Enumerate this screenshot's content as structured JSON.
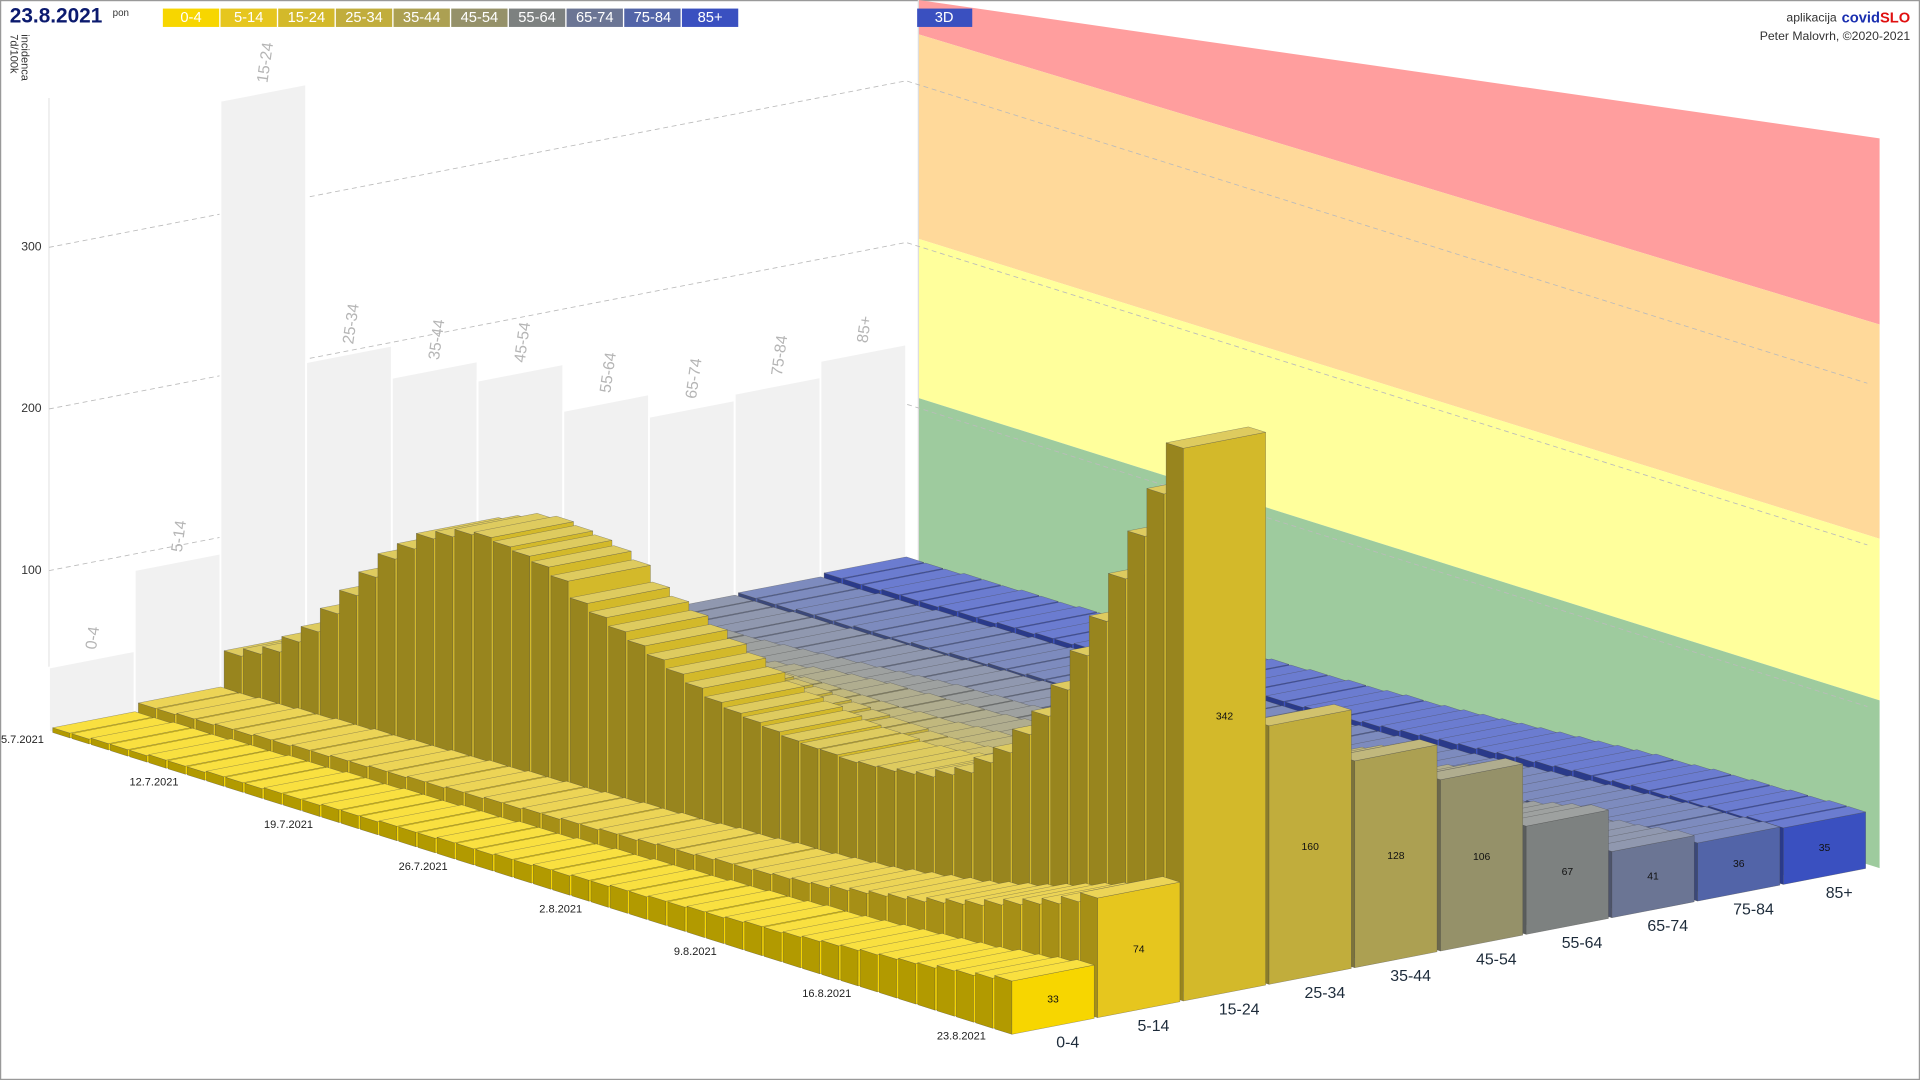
{
  "header": {
    "date": "23.8.2021",
    "weekday": "pon",
    "app_label": "aplikacija",
    "app_name_1": "covid",
    "app_name_2": "SLO",
    "author": "Peter Malovrh, ©2020-2021",
    "view_button": "3D"
  },
  "chart_data": {
    "type": "bar3d",
    "y_label": [
      "7d/100k",
      "incidenca"
    ],
    "categories": [
      "5.7.2021",
      null,
      null,
      null,
      null,
      null,
      null,
      "12.7.2021",
      null,
      null,
      null,
      null,
      null,
      null,
      "19.7.2021",
      null,
      null,
      null,
      null,
      null,
      null,
      "26.7.2021",
      null,
      null,
      null,
      null,
      null,
      null,
      "2.8.2021",
      null,
      null,
      null,
      null,
      null,
      null,
      "9.8.2021",
      null,
      null,
      null,
      null,
      null,
      null,
      "16.8.2021",
      null,
      null,
      null,
      null,
      null,
      null,
      "23.8.2021"
    ],
    "series": [
      {
        "name": "0-4",
        "color": "#f7d600",
        "values": [
          3,
          3,
          4,
          4,
          4,
          5,
          5,
          5,
          6,
          6,
          6,
          7,
          7,
          7,
          8,
          8,
          8,
          9,
          9,
          9,
          10,
          10,
          10,
          11,
          11,
          12,
          12,
          13,
          13,
          14,
          14,
          15,
          15,
          16,
          16,
          17,
          18,
          18,
          19,
          20,
          21,
          22,
          23,
          24,
          25,
          26,
          28,
          29,
          31,
          33
        ]
      },
      {
        "name": "5-14",
        "color": "#e6c61e",
        "values": [
          8,
          8,
          9,
          9,
          10,
          10,
          11,
          11,
          12,
          12,
          13,
          13,
          14,
          14,
          15,
          15,
          16,
          16,
          17,
          17,
          18,
          18,
          19,
          19,
          20,
          20,
          21,
          22,
          22,
          23,
          24,
          24,
          25,
          26,
          27,
          28,
          30,
          32,
          34,
          36,
          38,
          41,
          44,
          47,
          51,
          55,
          59,
          63,
          68,
          74
        ]
      },
      {
        "name": "15-24",
        "color": "#d3b92a",
        "values": [
          30,
          35,
          40,
          50,
          60,
          75,
          90,
          105,
          120,
          130,
          140,
          145,
          150,
          152,
          150,
          148,
          145,
          140,
          130,
          125,
          120,
          115,
          110,
          105,
          100,
          95,
          92,
          90,
          88,
          86,
          85,
          85,
          84,
          85,
          86,
          88,
          90,
          95,
          100,
          110,
          120,
          135,
          150,
          170,
          195,
          220,
          250,
          280,
          310,
          342
        ]
      },
      {
        "name": "25-34",
        "color": "#c1ad3c",
        "values": [
          20,
          22,
          25,
          28,
          32,
          36,
          40,
          45,
          50,
          55,
          60,
          65,
          68,
          70,
          72,
          73,
          74,
          74,
          74,
          73,
          72,
          71,
          70,
          69,
          68,
          67,
          66,
          66,
          65,
          65,
          66,
          67,
          68,
          70,
          72,
          75,
          78,
          82,
          86,
          90,
          95,
          100,
          106,
          112,
          119,
          127,
          135,
          143,
          151,
          160
        ]
      },
      {
        "name": "35-44",
        "color": "#aca052",
        "values": [
          12,
          13,
          14,
          16,
          18,
          20,
          22,
          25,
          28,
          31,
          34,
          37,
          40,
          42,
          44,
          45,
          46,
          47,
          47,
          47,
          47,
          47,
          47,
          48,
          48,
          49,
          50,
          51,
          52,
          53,
          55,
          57,
          59,
          61,
          63,
          66,
          69,
          72,
          76,
          80,
          84,
          88,
          92,
          97,
          102,
          107,
          112,
          117,
          122,
          128
        ]
      },
      {
        "name": "45-54",
        "color": "#959169",
        "values": [
          8,
          9,
          10,
          11,
          12,
          13,
          14,
          16,
          18,
          20,
          22,
          24,
          26,
          28,
          30,
          31,
          32,
          33,
          33,
          34,
          34,
          35,
          35,
          36,
          37,
          38,
          39,
          40,
          41,
          42,
          44,
          46,
          48,
          50,
          52,
          54,
          56,
          59,
          62,
          65,
          68,
          71,
          75,
          79,
          83,
          87,
          91,
          95,
          100,
          106
        ]
      },
      {
        "name": "55-64",
        "color": "#7d8180",
        "values": [
          5,
          5,
          6,
          6,
          7,
          7,
          8,
          9,
          10,
          11,
          12,
          13,
          14,
          15,
          16,
          17,
          18,
          18,
          19,
          19,
          20,
          20,
          21,
          22,
          23,
          24,
          25,
          26,
          27,
          28,
          29,
          30,
          31,
          32,
          33,
          35,
          37,
          39,
          41,
          43,
          45,
          47,
          49,
          51,
          53,
          55,
          58,
          61,
          64,
          67
        ]
      },
      {
        "name": "65-74",
        "color": "#6b7594",
        "values": [
          3,
          3,
          3,
          4,
          4,
          4,
          5,
          5,
          6,
          6,
          7,
          7,
          8,
          8,
          9,
          9,
          10,
          10,
          11,
          11,
          12,
          12,
          13,
          13,
          14,
          14,
          15,
          15,
          16,
          17,
          18,
          19,
          20,
          21,
          22,
          23,
          24,
          25,
          26,
          27,
          28,
          29,
          30,
          32,
          33,
          34,
          36,
          37,
          39,
          41
        ]
      },
      {
        "name": "75-84",
        "color": "#5264a8",
        "values": [
          4,
          4,
          4,
          5,
          5,
          5,
          6,
          6,
          6,
          7,
          7,
          8,
          8,
          9,
          9,
          10,
          10,
          11,
          11,
          12,
          12,
          13,
          13,
          14,
          14,
          15,
          15,
          16,
          17,
          17,
          18,
          19,
          20,
          21,
          22,
          23,
          24,
          25,
          26,
          27,
          28,
          29,
          30,
          31,
          32,
          33,
          34,
          34,
          35,
          36
        ]
      },
      {
        "name": "85+",
        "color": "#3a50c0",
        "values": [
          6,
          6,
          6,
          7,
          7,
          7,
          8,
          8,
          8,
          9,
          9,
          10,
          10,
          11,
          11,
          12,
          12,
          13,
          13,
          14,
          14,
          15,
          15,
          16,
          16,
          17,
          18,
          18,
          19,
          20,
          21,
          22,
          23,
          24,
          25,
          26,
          27,
          28,
          29,
          30,
          30,
          31,
          32,
          32,
          33,
          33,
          34,
          34,
          35,
          35
        ]
      }
    ],
    "wall_values": [
      40,
      90,
      370,
      198,
      178,
      166,
      137,
      123,
      127,
      137
    ],
    "ylim": [
      0,
      400
    ],
    "yticks": [
      100,
      200,
      300
    ],
    "grid": true
  }
}
